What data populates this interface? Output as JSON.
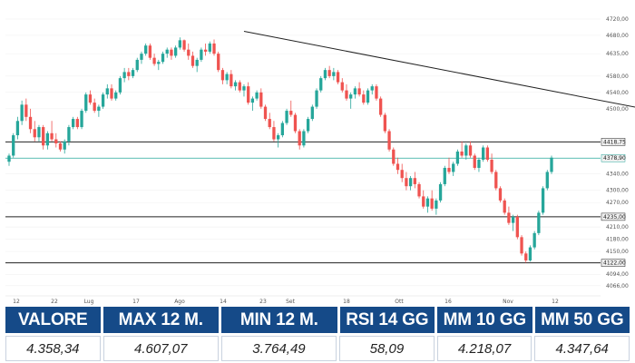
{
  "chart_data": {
    "type": "candlestick",
    "y_axis_ticks": [
      "4720,00",
      "4680,00",
      "4635,00",
      "4580,00",
      "4540,00",
      "4500,00",
      "4418,75",
      "4378,90",
      "4340,00",
      "4300,00",
      "4270,00",
      "4235,00",
      "4210,00",
      "4180,00",
      "4150,00",
      "4122,00",
      "4094,00",
      "4066,00"
    ],
    "x_axis_ticks": [
      "12",
      "22",
      "Lug",
      "17",
      "Ago",
      "14",
      "23",
      "Set",
      "18",
      "Ott",
      "16",
      "Nov",
      "12"
    ],
    "ylim": [
      4050,
      4740
    ],
    "horizontal_levels": [
      {
        "value": 4418.75,
        "label": "4418,75",
        "color": "#222222"
      },
      {
        "value": 4378.9,
        "label": "4378,90",
        "color": "#26a69a"
      },
      {
        "value": 4235.0,
        "label": "4235,00",
        "color": "#222222"
      },
      {
        "value": 4122.0,
        "label": "4122,00",
        "color": "#222222"
      }
    ],
    "trendline": {
      "from": {
        "bar": 55,
        "price": 4690
      },
      "to": {
        "bar": 178,
        "price": 4440
      }
    },
    "series": [
      {
        "values": [
          [
            4370,
            4390,
            4360,
            4385
          ],
          [
            4385,
            4440,
            4380,
            4435
          ],
          [
            4435,
            4480,
            4425,
            4470
          ],
          [
            4470,
            4520,
            4460,
            4510
          ],
          [
            4510,
            4525,
            4470,
            4480
          ],
          [
            4480,
            4500,
            4440,
            4450
          ],
          [
            4450,
            4470,
            4420,
            4430
          ],
          [
            4430,
            4460,
            4420,
            4455
          ],
          [
            4455,
            4460,
            4400,
            4410
          ],
          [
            4410,
            4445,
            4400,
            4440
          ],
          [
            4440,
            4470,
            4420,
            4425
          ],
          [
            4425,
            4440,
            4405,
            4415
          ],
          [
            4415,
            4420,
            4395,
            4400
          ],
          [
            4400,
            4425,
            4390,
            4420
          ],
          [
            4420,
            4460,
            4410,
            4455
          ],
          [
            4455,
            4480,
            4450,
            4475
          ],
          [
            4475,
            4480,
            4450,
            4455
          ],
          [
            4455,
            4500,
            4450,
            4495
          ],
          [
            4495,
            4540,
            4490,
            4535
          ],
          [
            4535,
            4545,
            4510,
            4515
          ],
          [
            4515,
            4525,
            4490,
            4495
          ],
          [
            4495,
            4510,
            4480,
            4505
          ],
          [
            4505,
            4540,
            4500,
            4535
          ],
          [
            4535,
            4560,
            4525,
            4550
          ],
          [
            4550,
            4560,
            4520,
            4525
          ],
          [
            4525,
            4545,
            4520,
            4540
          ],
          [
            4540,
            4580,
            4535,
            4575
          ],
          [
            4575,
            4600,
            4565,
            4590
          ],
          [
            4590,
            4600,
            4570,
            4580
          ],
          [
            4580,
            4600,
            4575,
            4595
          ],
          [
            4595,
            4625,
            4590,
            4620
          ],
          [
            4620,
            4640,
            4610,
            4635
          ],
          [
            4635,
            4660,
            4630,
            4655
          ],
          [
            4655,
            4660,
            4620,
            4625
          ],
          [
            4625,
            4635,
            4605,
            4610
          ],
          [
            4610,
            4620,
            4595,
            4615
          ],
          [
            4615,
            4640,
            4610,
            4635
          ],
          [
            4635,
            4650,
            4625,
            4645
          ],
          [
            4645,
            4650,
            4620,
            4630
          ],
          [
            4630,
            4655,
            4625,
            4650
          ],
          [
            4650,
            4675,
            4645,
            4668
          ],
          [
            4668,
            4670,
            4640,
            4645
          ],
          [
            4645,
            4660,
            4620,
            4630
          ],
          [
            4630,
            4640,
            4600,
            4605
          ],
          [
            4605,
            4625,
            4590,
            4620
          ],
          [
            4620,
            4650,
            4615,
            4645
          ],
          [
            4645,
            4660,
            4630,
            4640
          ],
          [
            4640,
            4665,
            4635,
            4660
          ],
          [
            4660,
            4670,
            4630,
            4635
          ],
          [
            4635,
            4640,
            4590,
            4595
          ],
          [
            4595,
            4600,
            4560,
            4570
          ],
          [
            4570,
            4590,
            4560,
            4585
          ],
          [
            4585,
            4595,
            4550,
            4555
          ],
          [
            4555,
            4570,
            4545,
            4565
          ],
          [
            4565,
            4570,
            4540,
            4545
          ],
          [
            4545,
            4560,
            4530,
            4555
          ],
          [
            4555,
            4565,
            4510,
            4515
          ],
          [
            4515,
            4530,
            4495,
            4525
          ],
          [
            4525,
            4545,
            4520,
            4540
          ],
          [
            4540,
            4550,
            4500,
            4505
          ],
          [
            4505,
            4510,
            4470,
            4475
          ],
          [
            4475,
            4490,
            4450,
            4455
          ],
          [
            4455,
            4470,
            4420,
            4425
          ],
          [
            4425,
            4440,
            4405,
            4435
          ],
          [
            4435,
            4470,
            4430,
            4465
          ],
          [
            4465,
            4500,
            4460,
            4495
          ],
          [
            4495,
            4520,
            4480,
            4485
          ],
          [
            4485,
            4490,
            4440,
            4445
          ],
          [
            4445,
            4450,
            4400,
            4410
          ],
          [
            4410,
            4450,
            4405,
            4445
          ],
          [
            4445,
            4480,
            4440,
            4475
          ],
          [
            4475,
            4510,
            4470,
            4505
          ],
          [
            4505,
            4550,
            4500,
            4545
          ],
          [
            4545,
            4580,
            4540,
            4575
          ],
          [
            4575,
            4600,
            4570,
            4595
          ],
          [
            4595,
            4605,
            4575,
            4580
          ],
          [
            4580,
            4600,
            4570,
            4590
          ],
          [
            4590,
            4595,
            4560,
            4565
          ],
          [
            4565,
            4575,
            4540,
            4545
          ],
          [
            4545,
            4560,
            4520,
            4525
          ],
          [
            4525,
            4540,
            4500,
            4535
          ],
          [
            4535,
            4555,
            4525,
            4550
          ],
          [
            4550,
            4565,
            4530,
            4535
          ],
          [
            4535,
            4545,
            4510,
            4515
          ],
          [
            4515,
            4550,
            4510,
            4545
          ],
          [
            4545,
            4560,
            4535,
            4555
          ],
          [
            4555,
            4560,
            4520,
            4525
          ],
          [
            4525,
            4530,
            4480,
            4485
          ],
          [
            4485,
            4490,
            4440,
            4445
          ],
          [
            4445,
            4450,
            4395,
            4400
          ],
          [
            4400,
            4405,
            4360,
            4365
          ],
          [
            4365,
            4380,
            4340,
            4350
          ],
          [
            4350,
            4365,
            4320,
            4330
          ],
          [
            4330,
            4345,
            4300,
            4310
          ],
          [
            4310,
            4335,
            4300,
            4330
          ],
          [
            4330,
            4345,
            4305,
            4315
          ],
          [
            4315,
            4320,
            4280,
            4285
          ],
          [
            4285,
            4300,
            4255,
            4260
          ],
          [
            4260,
            4285,
            4245,
            4280
          ],
          [
            4280,
            4300,
            4250,
            4255
          ],
          [
            4255,
            4280,
            4240,
            4275
          ],
          [
            4275,
            4320,
            4270,
            4315
          ],
          [
            4315,
            4360,
            4310,
            4355
          ],
          [
            4355,
            4380,
            4340,
            4345
          ],
          [
            4345,
            4370,
            4335,
            4365
          ],
          [
            4365,
            4400,
            4360,
            4395
          ],
          [
            4395,
            4420,
            4380,
            4385
          ],
          [
            4385,
            4415,
            4375,
            4410
          ],
          [
            4410,
            4420,
            4380,
            4385
          ],
          [
            4385,
            4390,
            4350,
            4355
          ],
          [
            4355,
            4380,
            4345,
            4375
          ],
          [
            4375,
            4410,
            4370,
            4405
          ],
          [
            4405,
            4410,
            4370,
            4375
          ],
          [
            4375,
            4390,
            4340,
            4345
          ],
          [
            4345,
            4350,
            4300,
            4305
          ],
          [
            4305,
            4310,
            4270,
            4275
          ],
          [
            4275,
            4280,
            4240,
            4245
          ],
          [
            4245,
            4260,
            4215,
            4220
          ],
          [
            4220,
            4240,
            4200,
            4235
          ],
          [
            4235,
            4240,
            4180,
            4185
          ],
          [
            4185,
            4190,
            4140,
            4145
          ],
          [
            4145,
            4150,
            4122,
            4128
          ],
          [
            4128,
            4165,
            4125,
            4160
          ],
          [
            4160,
            4200,
            4155,
            4195
          ],
          [
            4195,
            4250,
            4190,
            4245
          ],
          [
            4245,
            4310,
            4240,
            4305
          ],
          [
            4305,
            4350,
            4300,
            4345
          ],
          [
            4345,
            4385,
            4340,
            4380
          ]
        ]
      }
    ]
  },
  "stats": {
    "headers": [
      "VALORE",
      "MAX 12 M.",
      "MIN 12 M.",
      "RSI 14 GG",
      "MM 10 GG",
      "MM 50 GG"
    ],
    "values": [
      "4.358,34",
      "4.607,07",
      "3.764,49",
      "58,09",
      "4.218,07",
      "4.347,64"
    ]
  },
  "colors": {
    "up": "#26a69a",
    "down": "#ef5350",
    "header_bg": "#154a88",
    "grid": "#eeeeee"
  }
}
